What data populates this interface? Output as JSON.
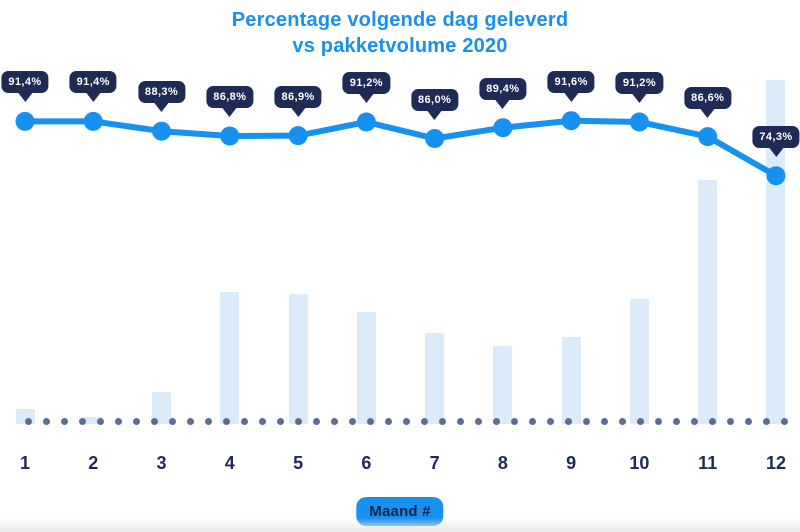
{
  "title": {
    "line1": "Percentage volgende dag geleverd",
    "line2": "vs pakketvolume 2020"
  },
  "xaxis": {
    "badge": "Maand #",
    "categories": [
      "1",
      "2",
      "3",
      "4",
      "5",
      "6",
      "7",
      "8",
      "9",
      "10",
      "11",
      "12"
    ]
  },
  "chart_data": {
    "type": "combo",
    "title": "Percentage volgende dag geleverd vs pakketvolume 2020",
    "xlabel": "Maand #",
    "categories": [
      "1",
      "2",
      "3",
      "4",
      "5",
      "6",
      "7",
      "8",
      "9",
      "10",
      "11",
      "12"
    ],
    "series": [
      {
        "name": "Percentage volgende dag geleverd",
        "type": "line",
        "unit": "%",
        "values": [
          91.4,
          91.4,
          88.3,
          86.8,
          86.9,
          91.2,
          86.0,
          89.4,
          91.6,
          91.2,
          86.6,
          74.3
        ],
        "labels": [
          "91,4%",
          "91,4%",
          "88,3%",
          "86,8%",
          "86,9%",
          "91,2%",
          "86,0%",
          "89,4%",
          "91,6%",
          "91,2%",
          "86,6%",
          "74,3%"
        ]
      },
      {
        "name": "Pakketvolume 2020",
        "type": "bar",
        "unit": "relative index (no value axis shown), max month = 100",
        "values": [
          4.4,
          1.9,
          9.3,
          38.4,
          37.8,
          32.6,
          26.5,
          22.7,
          25.3,
          36.3,
          70.9,
          100
        ]
      }
    ],
    "legend": "none",
    "grid": false,
    "baseline_style": "dotted gray line at x-axis",
    "data_labels": "dark tooltip badge above each line point"
  },
  "colors": {
    "accent": "#1791f0",
    "navy": "#1d2b55",
    "bar": "#dcebfa",
    "dot": "#5d6e92",
    "label_text": "#ffffff"
  }
}
